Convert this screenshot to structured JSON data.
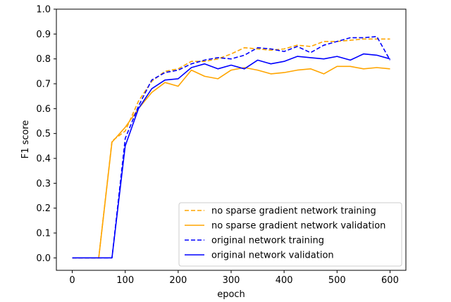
{
  "chart_data": {
    "type": "line",
    "xlabel": "epoch",
    "ylabel": "F1 score",
    "xlim": [
      -30,
      630
    ],
    "ylim": [
      -0.05,
      1.0
    ],
    "xticks": [
      0,
      100,
      200,
      300,
      400,
      500,
      600
    ],
    "yticks": [
      0.0,
      0.1,
      0.2,
      0.3,
      0.4,
      0.5,
      0.6,
      0.7,
      0.8,
      0.9,
      1.0
    ],
    "xtick_labels": [
      "0",
      "100",
      "200",
      "300",
      "400",
      "500",
      "600"
    ],
    "ytick_labels": [
      "0.0",
      "0.1",
      "0.2",
      "0.3",
      "0.4",
      "0.5",
      "0.6",
      "0.7",
      "0.8",
      "0.9",
      "1.0"
    ],
    "grid": false,
    "legend_position": "lower-right",
    "x": [
      0,
      25,
      50,
      75,
      100,
      125,
      150,
      175,
      200,
      225,
      250,
      275,
      300,
      325,
      350,
      375,
      400,
      425,
      450,
      475,
      500,
      525,
      550,
      575,
      600
    ],
    "series": [
      {
        "name": "no sparse gradient network training",
        "color": "#ffa500",
        "dash": "dashed",
        "values": [
          0.0,
          0.0,
          0.0,
          0.47,
          0.51,
          0.63,
          0.71,
          0.75,
          0.76,
          0.79,
          0.79,
          0.8,
          0.82,
          0.845,
          0.84,
          0.835,
          0.84,
          0.855,
          0.85,
          0.87,
          0.87,
          0.875,
          0.88,
          0.88,
          0.88
        ]
      },
      {
        "name": "no sparse gradient network validation",
        "color": "#ffa500",
        "dash": "solid",
        "values": [
          0.0,
          0.0,
          0.0,
          0.465,
          0.525,
          0.6,
          0.665,
          0.705,
          0.69,
          0.755,
          0.73,
          0.72,
          0.755,
          0.765,
          0.755,
          0.74,
          0.745,
          0.755,
          0.76,
          0.74,
          0.77,
          0.77,
          0.76,
          0.765,
          0.76
        ]
      },
      {
        "name": "original network training",
        "color": "#0000ff",
        "dash": "dashed",
        "values": [
          0.0,
          0.0,
          0.0,
          0.0,
          0.48,
          0.61,
          0.715,
          0.745,
          0.755,
          0.78,
          0.795,
          0.805,
          0.8,
          0.815,
          0.845,
          0.84,
          0.83,
          0.85,
          0.825,
          0.855,
          0.87,
          0.885,
          0.885,
          0.89,
          0.795
        ]
      },
      {
        "name": "original network validation",
        "color": "#0000ff",
        "dash": "solid",
        "values": [
          0.0,
          0.0,
          0.0,
          0.0,
          0.45,
          0.6,
          0.68,
          0.715,
          0.72,
          0.765,
          0.78,
          0.76,
          0.775,
          0.76,
          0.795,
          0.78,
          0.79,
          0.81,
          0.805,
          0.8,
          0.81,
          0.795,
          0.82,
          0.815,
          0.8
        ]
      }
    ]
  }
}
